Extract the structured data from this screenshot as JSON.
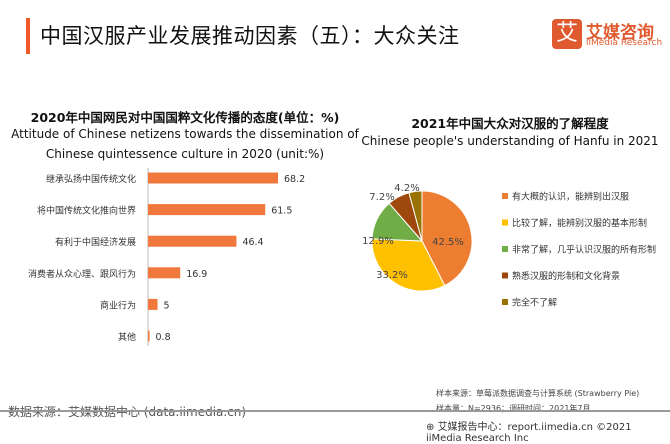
{
  "header": {
    "title": "中国汉服产业发展推动因素（五）：大众关注",
    "logo_mark": "艾",
    "logo_cn": "艾媒咨询",
    "logo_en": "iiMedia Research"
  },
  "chart_data": [
    {
      "type": "bar",
      "orientation": "horizontal",
      "title": "2020年中国网民对中国国粹文化传播的态度(单位：%)",
      "subtitle_lines": [
        "Attitude of Chinese netizens towards the dissemination of",
        "Chinese quintessence culture in 2020 (unit:%)"
      ],
      "categories": [
        "继承弘扬中国传统文化",
        "将中国传统文化推向世界",
        "有利于中国经济发展",
        "消费者从众心理、跟风行为",
        "商业行为",
        "其他"
      ],
      "values": [
        68.2,
        61.5,
        46.4,
        16.9,
        5,
        0.8
      ],
      "color": "#f0783c",
      "xlim": [
        0,
        75
      ]
    },
    {
      "type": "pie",
      "title": "2021年中国大众对汉服的了解程度",
      "subtitle": "Chinese people's understanding of Hanfu in 2021",
      "labels": [
        "有大概的认识，能辨别出汉服",
        "比较了解，能辨别汉服的基本形制",
        "非常了解，几乎认识汉服的所有形制",
        "熟悉汉服的形制和文化背景",
        "完全不了解"
      ],
      "values": [
        42.5,
        33.2,
        12.9,
        7.2,
        4.2
      ],
      "value_labels": [
        "42.5%",
        "33.2%",
        "12.9%",
        "7.2%",
        "4.2%"
      ],
      "colors": [
        "#ed7d31",
        "#ffc000",
        "#70ad47",
        "#9e480e",
        "#997300"
      ],
      "legend": "right",
      "start": "top",
      "direction": "clockwise"
    }
  ],
  "footer": {
    "source": "数据来源：艾媒数据中心 (data.iimedia.cn)",
    "sample_source": "样本来源：草莓派数据调查与计算系统 (Strawberry Pie)",
    "sample_size": "样本量：N=2936；调研时间：2021年7月",
    "report": "艾媒报告中心：report.iimedia.cn ©2021 iiMedia Research Inc"
  }
}
